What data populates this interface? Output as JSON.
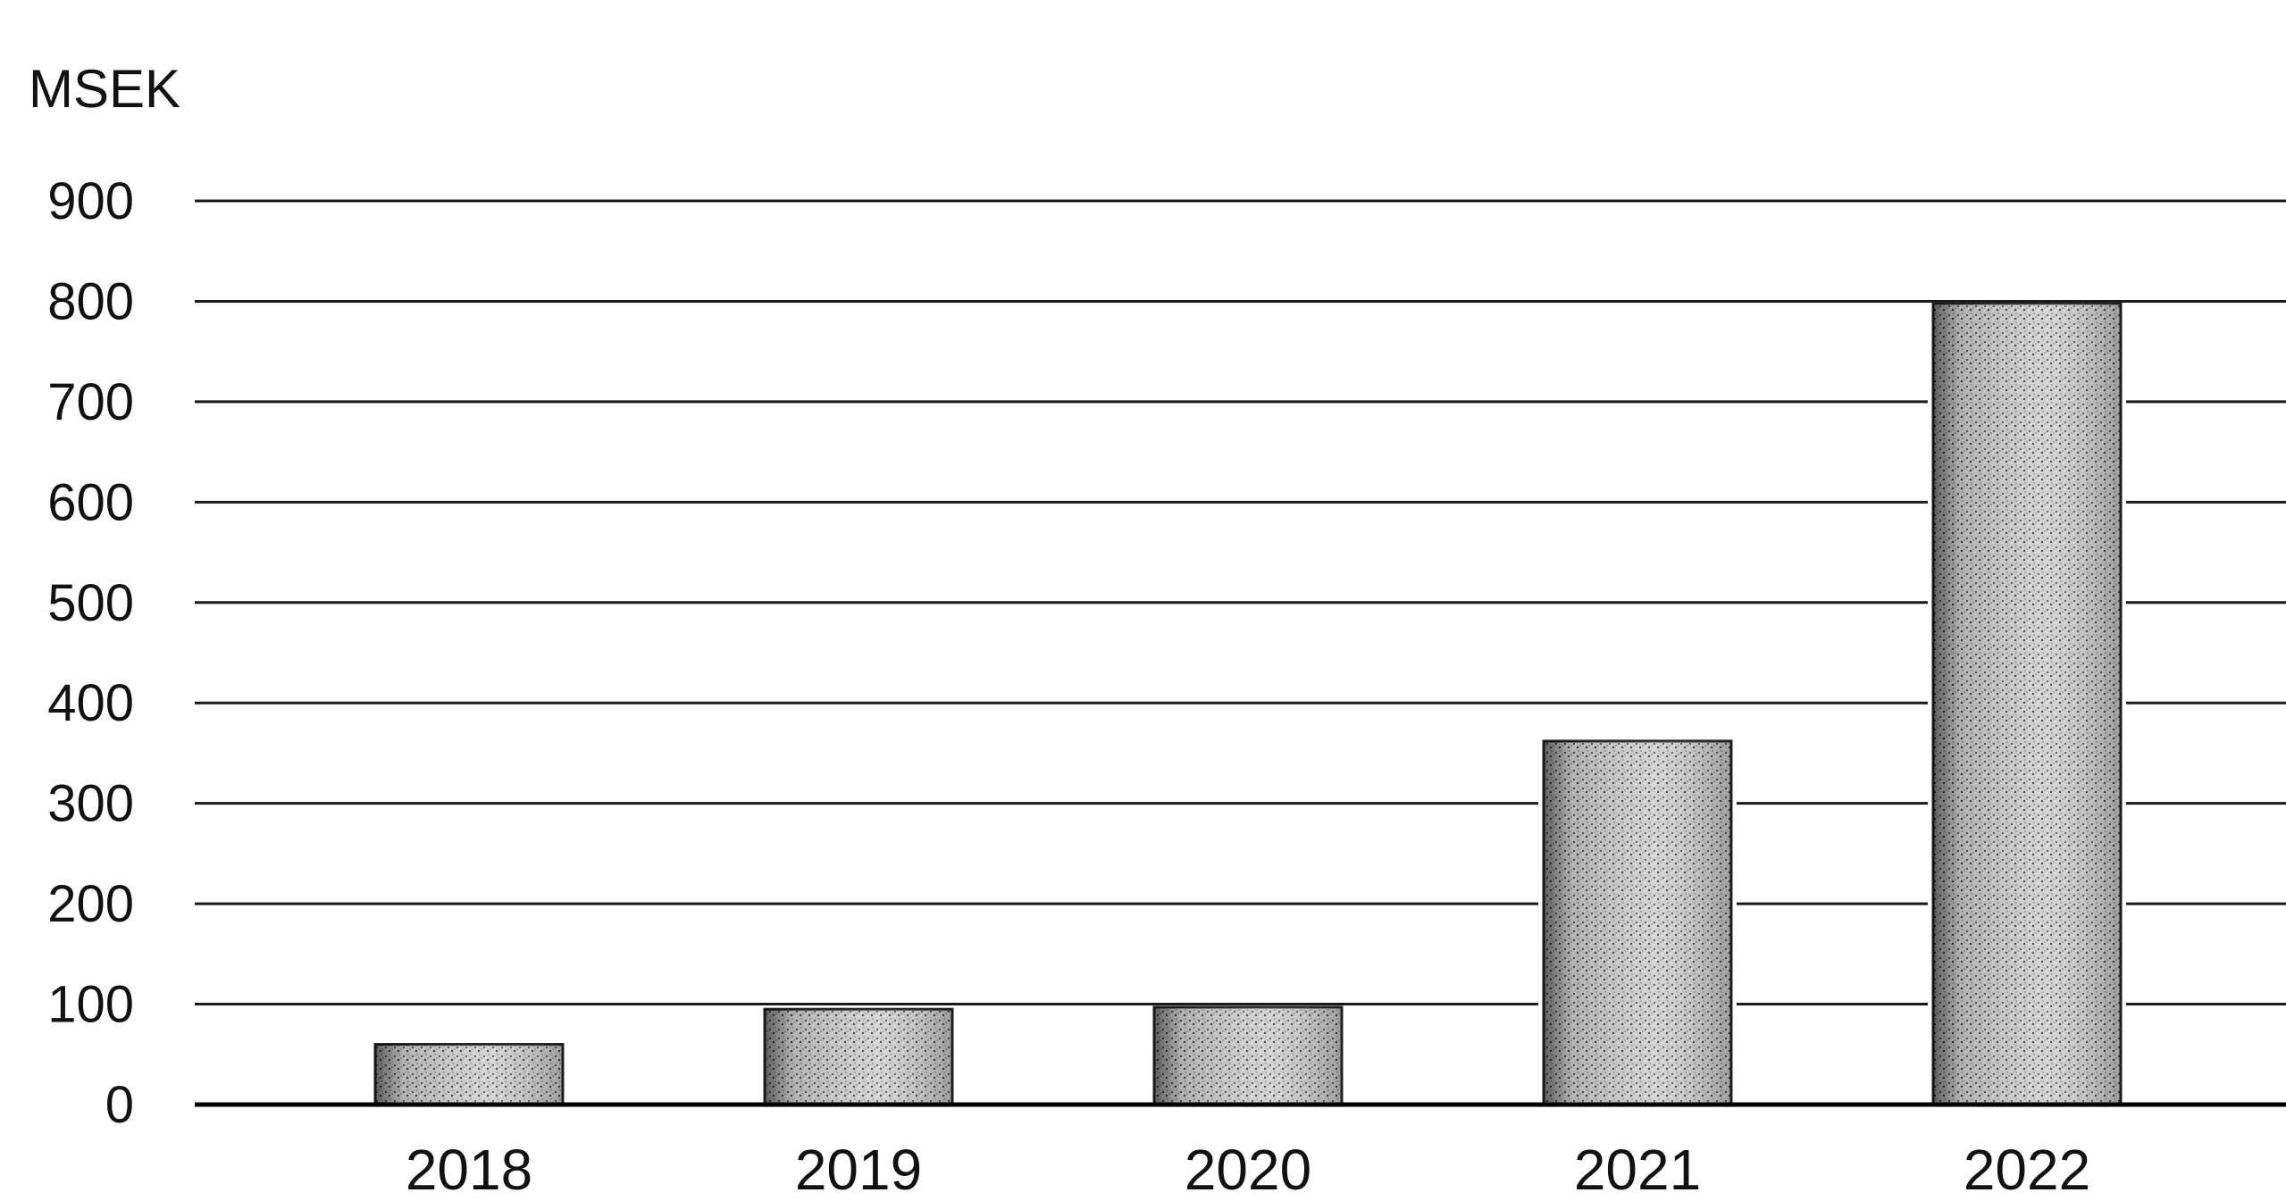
{
  "chart_data": {
    "type": "bar",
    "ylabel": "MSEK",
    "categories": [
      "2018",
      "2019",
      "2020",
      "2021",
      "2022"
    ],
    "values": [
      60,
      95,
      97,
      362,
      798
    ],
    "ylim": [
      0,
      900
    ],
    "yticks": [
      0,
      100,
      200,
      300,
      400,
      500,
      600,
      700,
      800,
      900
    ],
    "grid": true,
    "bar_style": "grey-stippled"
  }
}
